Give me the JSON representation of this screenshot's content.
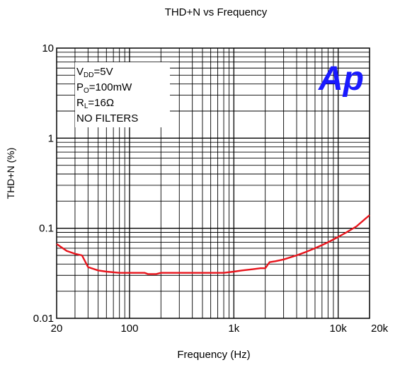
{
  "chart_data": {
    "type": "line",
    "title": "THD+N vs Frequency",
    "xlabel": "Frequency (Hz)",
    "ylabel": "THD+N (%)",
    "x_scale": "log",
    "y_scale": "log",
    "xlim": [
      20,
      20000
    ],
    "ylim": [
      0.01,
      10
    ],
    "grid": true,
    "x_ticks": [
      {
        "value": 20,
        "label": "20"
      },
      {
        "value": 100,
        "label": "100"
      },
      {
        "value": 1000,
        "label": "1k"
      },
      {
        "value": 10000,
        "label": "10k"
      },
      {
        "value": 20000,
        "label": "20k"
      }
    ],
    "y_ticks": [
      {
        "value": 10,
        "label": "10"
      },
      {
        "value": 1,
        "label": "1"
      },
      {
        "value": 0.1,
        "label": "0.1"
      },
      {
        "value": 0.01,
        "label": "0.01"
      }
    ],
    "series": [
      {
        "color": "#e8141c",
        "x": [
          20,
          22,
          25,
          30,
          35,
          40,
          50,
          60,
          80,
          100,
          120,
          140,
          150,
          180,
          200,
          250,
          300,
          400,
          500,
          700,
          800,
          1000,
          1200,
          1500,
          1800,
          2000,
          2200,
          2500,
          3000,
          4000,
          5000,
          6000,
          7000,
          8000,
          10000,
          12000,
          15000,
          20000
        ],
        "y": [
          0.067,
          0.062,
          0.056,
          0.052,
          0.05,
          0.037,
          0.034,
          0.033,
          0.032,
          0.032,
          0.032,
          0.032,
          0.031,
          0.031,
          0.032,
          0.032,
          0.032,
          0.032,
          0.032,
          0.032,
          0.032,
          0.033,
          0.034,
          0.035,
          0.036,
          0.036,
          0.042,
          0.043,
          0.045,
          0.05,
          0.055,
          0.06,
          0.065,
          0.07,
          0.08,
          0.09,
          0.105,
          0.14
        ]
      }
    ],
    "annotations": {
      "conditions": [
        {
          "main": "V",
          "sub": "DD",
          "rest": "=5V"
        },
        {
          "main": "P",
          "sub": "O",
          "rest": "=100mW"
        },
        {
          "main": "R",
          "sub": "L",
          "rest": "=16Ω"
        },
        {
          "main": "NO FILTERS",
          "sub": "",
          "rest": ""
        }
      ],
      "logo_text": "Ap",
      "logo_color": "#1a1aff"
    }
  }
}
